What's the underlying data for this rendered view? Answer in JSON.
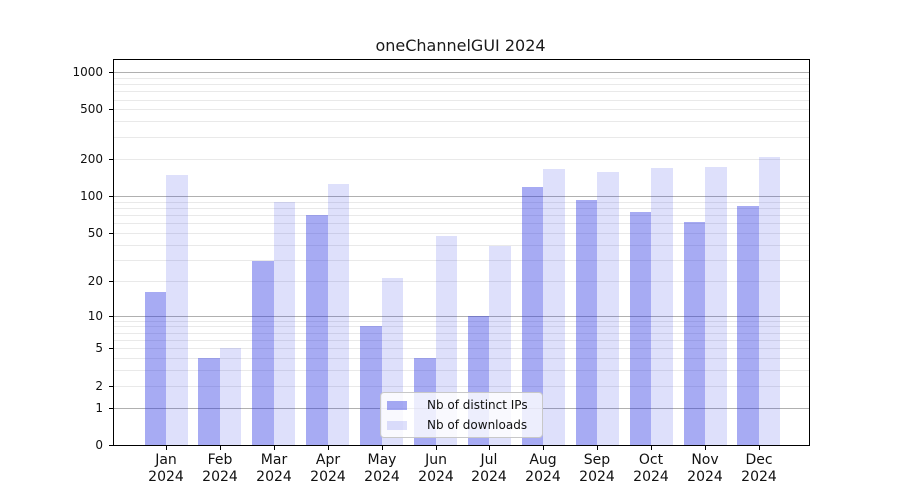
{
  "chart_data": {
    "type": "bar",
    "title": "oneChannelGUI 2024",
    "categories": [
      "Jan 2024",
      "Feb 2024",
      "Mar 2024",
      "Apr 2024",
      "May 2024",
      "Jun 2024",
      "Jul 2024",
      "Aug 2024",
      "Sep 2024",
      "Oct 2024",
      "Nov 2024",
      "Dec 2024"
    ],
    "x_tick_months": [
      "Jan",
      "Feb",
      "Mar",
      "Apr",
      "May",
      "Jun",
      "Jul",
      "Aug",
      "Sep",
      "Oct",
      "Nov",
      "Dec"
    ],
    "x_tick_year": "2024",
    "series": [
      {
        "name": "Nb of distinct IPs",
        "color": "#a7abf3",
        "color_rgba": "rgba(35,45,225,0.40)",
        "values": [
          16,
          4,
          29,
          70,
          8,
          4,
          10,
          118,
          93,
          74,
          61,
          83
        ]
      },
      {
        "name": "Nb of downloads",
        "color": "#dedffa",
        "color_rgba": "rgba(35,45,225,0.15)",
        "values": [
          148,
          5,
          90,
          125,
          21,
          47,
          39,
          165,
          155,
          167,
          171,
          208
        ]
      }
    ],
    "yscale": "log10(value+1)",
    "ylim": [
      0,
      1250
    ],
    "yticks": [
      0,
      1,
      2,
      5,
      10,
      20,
      50,
      100,
      200,
      500,
      1000
    ],
    "ytick_labels": [
      "0",
      "1",
      "2",
      "5",
      "10",
      "20",
      "50",
      "100",
      "200",
      "500",
      "1000"
    ],
    "grid": "horizontal",
    "grid_minor_values": [
      2,
      3,
      4,
      5,
      6,
      7,
      8,
      9,
      20,
      30,
      40,
      50,
      60,
      70,
      80,
      90,
      200,
      300,
      400,
      500,
      600,
      700,
      800,
      900
    ],
    "grid_major_values": [
      1,
      10,
      100,
      1000
    ],
    "legend_position": "lower-center-inside"
  },
  "colors": {
    "background": "#ffffff",
    "axis": "#000000",
    "grid_minor": "#e9e9e9",
    "grid_major": "#b0b0b0",
    "legend_border": "#c8c8c8",
    "text": "#111111"
  }
}
